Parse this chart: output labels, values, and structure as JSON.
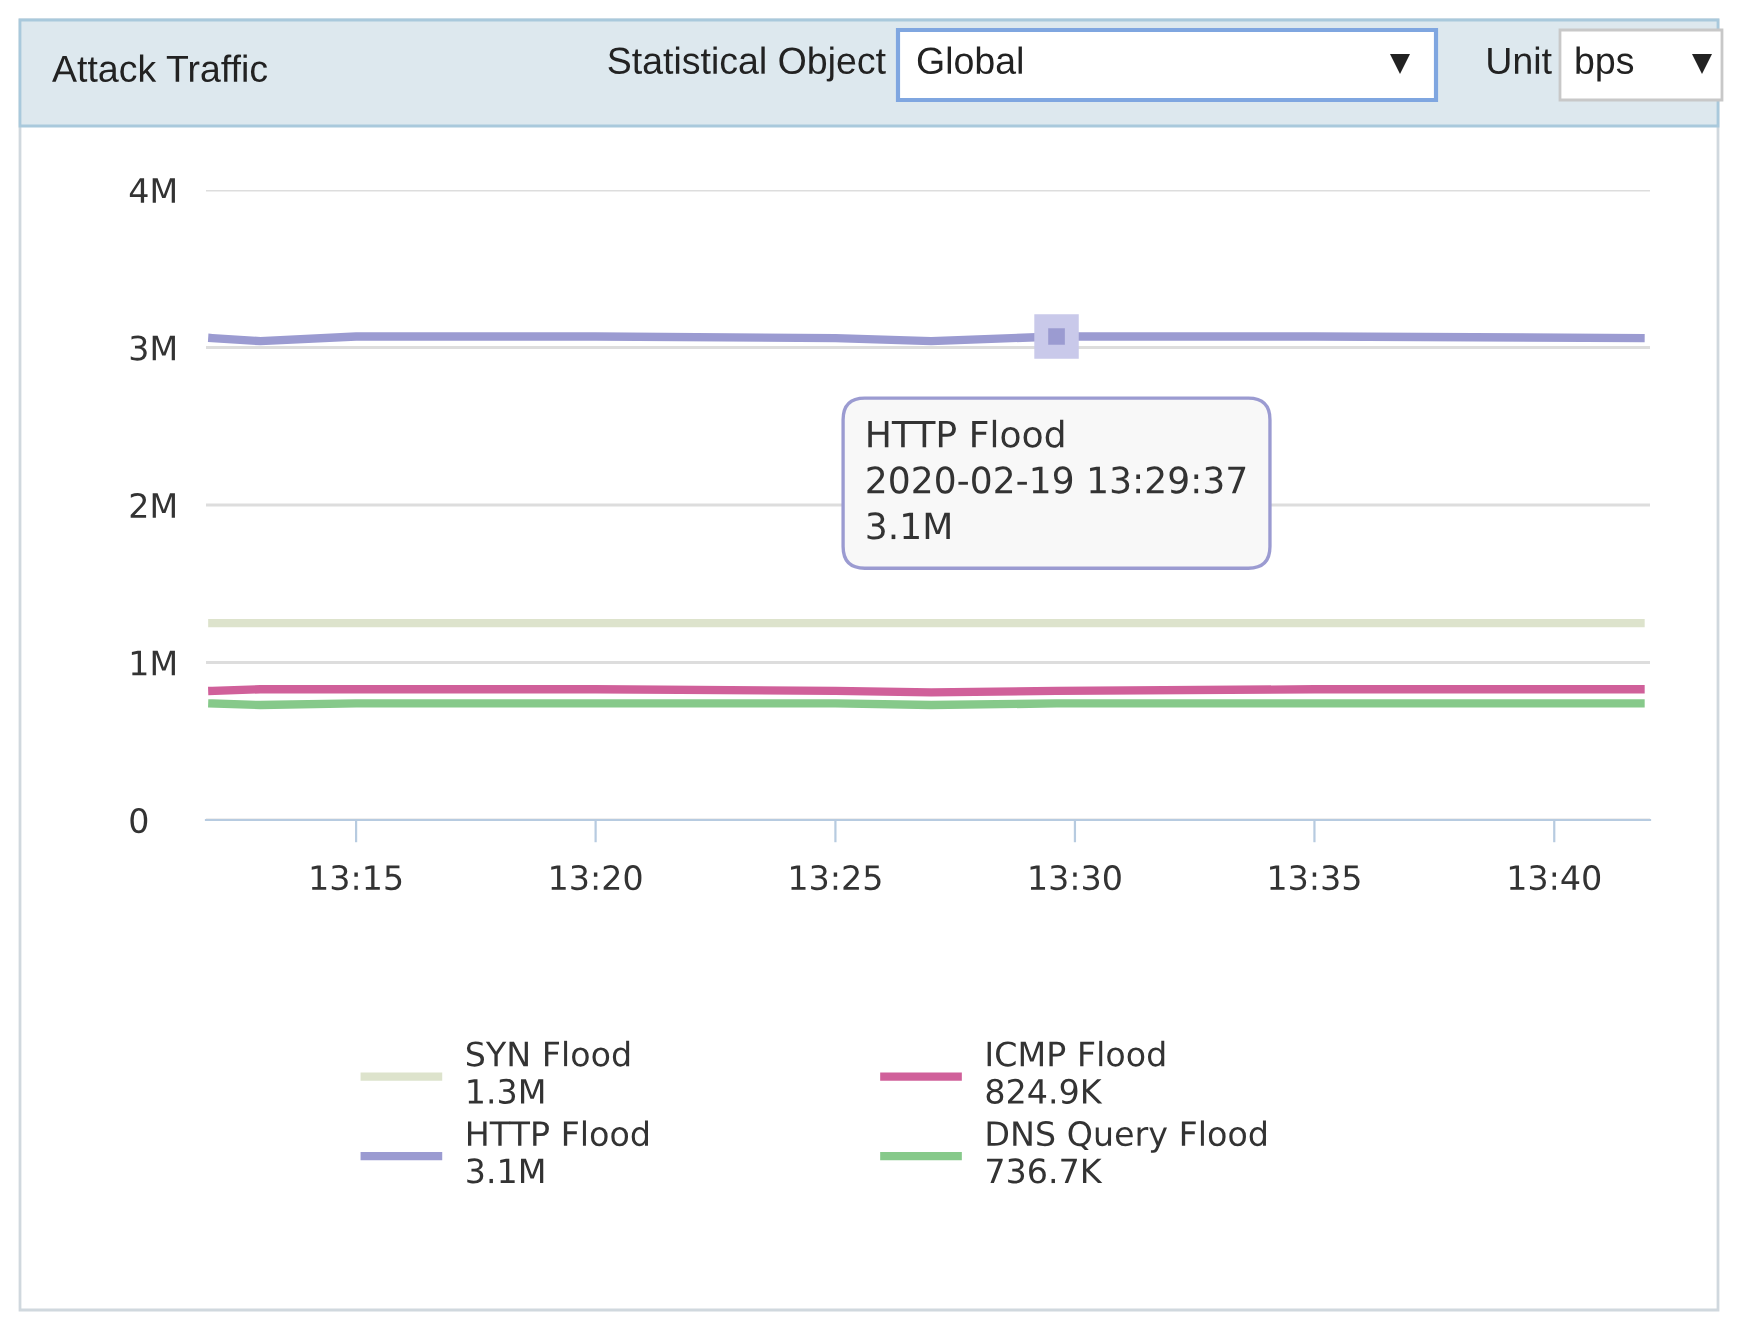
{
  "chart_data": {
    "type": "line",
    "title": "Attack Traffic",
    "x": [
      13.2,
      13.2167,
      13.25,
      13.3333,
      13.4167,
      13.45,
      13.4936,
      13.5833,
      13.6967
    ],
    "series": [
      {
        "name": "SYN Flood",
        "color": "#dde3cc",
        "values": [
          1250000,
          1250000,
          1250000,
          1250000,
          1250000,
          1250000,
          1250000,
          1250000,
          1250000
        ]
      },
      {
        "name": "HTTP Flood",
        "color": "#9b9bd1",
        "values": [
          3060000,
          3040000,
          3070000,
          3070000,
          3060000,
          3040000,
          3070000,
          3070000,
          3060000
        ]
      },
      {
        "name": "ICMP Flood",
        "color": "#d0609a",
        "values": [
          820000,
          830000,
          830000,
          830000,
          820000,
          810000,
          820000,
          830000,
          830000
        ]
      },
      {
        "name": "DNS Query Flood",
        "color": "#86c98a",
        "values": [
          740000,
          730000,
          740000,
          740000,
          740000,
          730000,
          740000,
          740000,
          740000
        ]
      }
    ],
    "annotations": [
      {
        "text": "HTTP Flood\n2020-02-19 13:29:37\n3.1M",
        "x": 13.4936,
        "y": 3070000
      },
      "Statistical Object",
      "Global",
      "Unit",
      "bps",
      "1.3M",
      "3.1M",
      "824.9K",
      "736.7K"
    ],
    "xlim": [
      13.1978,
      13.7
    ],
    "xticks": [
      {
        "value": 13.25,
        "label": "13:15"
      },
      {
        "value": 13.3333,
        "label": "13:20"
      },
      {
        "value": 13.4167,
        "label": "13:25"
      },
      {
        "value": 13.5,
        "label": "13:30"
      },
      {
        "value": 13.5833,
        "label": "13:35"
      },
      {
        "value": 13.6667,
        "label": "13:40"
      }
    ],
    "ylim": [
      0,
      4000000
    ],
    "yticks": [
      {
        "value": 0,
        "label": "0"
      },
      {
        "value": 1000000,
        "label": "1M"
      },
      {
        "value": 2000000,
        "label": "2M"
      },
      {
        "value": 3000000,
        "label": "3M"
      },
      {
        "value": 4000000,
        "label": "4M"
      }
    ],
    "grid": "y",
    "legend": "bottom",
    "marker": "none",
    "line_style": "solid"
  }
}
